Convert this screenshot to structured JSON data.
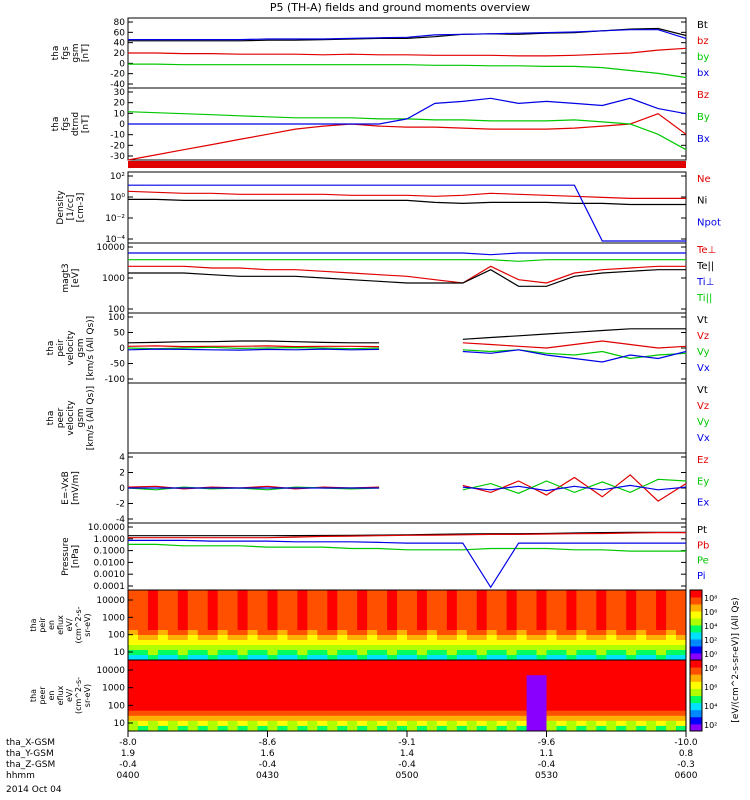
{
  "title": "P5 (TH-A) fields and ground moments overview",
  "colors": {
    "black": "#000000",
    "red": "#e00000",
    "green": "#00c800",
    "blue": "#0000e6"
  },
  "chart_data": {
    "type": "line",
    "x_axis": {
      "tick_hhmm": [
        "0400",
        "0430",
        "0500",
        "0530",
        "0600"
      ],
      "date_label": "2014 Oct 04",
      "row_labels": [
        "tha_X-GSM",
        "tha_Y-GSM",
        "tha_Z-GSM",
        "hhmm"
      ],
      "X_GSM": [
        "-8.0",
        "-8.6",
        "-9.1",
        "-9.6",
        "-10.0"
      ],
      "Y_GSM": [
        "1.9",
        "1.6",
        "1.4",
        "1.1",
        "0.8"
      ],
      "Z_GSM": [
        "-0.4",
        "-0.4",
        "-0.4",
        "-0.4",
        "-0.3"
      ]
    },
    "panels": [
      {
        "id": "fgs-mag",
        "ylabel": [
          "tha",
          "fgs",
          "gsm",
          "[nT]"
        ],
        "yticks": [
          "80",
          "60",
          "40",
          "20",
          "0",
          "-20",
          "-40"
        ],
        "ylim": [
          -40,
          80
        ],
        "series": [
          {
            "name": "Bt",
            "color": "black",
            "values": [
              41,
              41,
              41,
              41,
              41,
              42,
              42,
              43,
              44,
              45,
              45,
              48,
              52,
              53,
              52,
              54,
              55,
              58,
              61,
              62,
              50
            ]
          },
          {
            "name": "bz",
            "color": "red",
            "values": [
              20,
              20,
              19,
              19,
              18,
              18,
              18,
              17,
              18,
              17,
              17,
              16,
              16,
              16,
              15,
              15,
              16,
              18,
              20,
              25,
              28
            ]
          },
          {
            "name": "by",
            "color": "green",
            "values": [
              1,
              1,
              0,
              0,
              0,
              0,
              0,
              0,
              0,
              0,
              0,
              -1,
              -1,
              -2,
              -2,
              -3,
              -3,
              -5,
              -10,
              -15,
              -22
            ]
          },
          {
            "name": "bx",
            "color": "blue",
            "values": [
              43,
              43,
              43,
              43,
              43,
              44,
              44,
              44,
              45,
              46,
              47,
              51,
              52,
              53,
              54,
              55,
              56,
              58,
              60,
              60,
              45
            ]
          }
        ]
      },
      {
        "id": "fgs-detrend",
        "ylabel": [
          "tha",
          "fgs",
          "dtrnd",
          "[nT]"
        ],
        "yticks": [
          "30",
          "20",
          "10",
          "0",
          "-10",
          "-20",
          "-30"
        ],
        "ylim": [
          -35,
          35
        ],
        "series": [
          {
            "name": "Bz",
            "color": "red",
            "values": [
              -35,
              -30,
              -25,
              -20,
              -15,
              -10,
              -5,
              -2,
              0,
              -2,
              -3,
              -3,
              -4,
              -5,
              -5,
              -5,
              -4,
              -2,
              0,
              10,
              -10
            ]
          },
          {
            "name": "By",
            "color": "green",
            "values": [
              12,
              11,
              10,
              9,
              8,
              7,
              6,
              6,
              6,
              5,
              5,
              4,
              4,
              3,
              3,
              3,
              4,
              2,
              0,
              -10,
              -25
            ]
          },
          {
            "name": "Bx",
            "color": "blue",
            "values": [
              0,
              0,
              0,
              0,
              0,
              0,
              0,
              0,
              0,
              0,
              5,
              20,
              22,
              25,
              20,
              22,
              20,
              18,
              25,
              15,
              10
            ]
          }
        ]
      },
      {
        "id": "density",
        "ylabel": [
          "Density",
          "[1/cc]",
          "[cm-3]"
        ],
        "yticks": [
          "10²",
          "10⁰",
          "10⁻²",
          "10⁻⁴"
        ],
        "ylim": [
          -4.5,
          2.5
        ],
        "log": true,
        "series": [
          {
            "name": "Ne",
            "color": "red",
            "values": [
              0.6,
              0.5,
              0.4,
              0.4,
              0.3,
              0.3,
              0.3,
              0.3,
              0.2,
              0.2,
              0.2,
              0.1,
              0.2,
              0.4,
              0.3,
              0.2,
              0.1,
              0.0,
              -0.1,
              -0.1,
              -0.1
            ]
          },
          {
            "name": "Ni",
            "color": "black",
            "values": [
              -0.2,
              -0.2,
              -0.3,
              -0.3,
              -0.3,
              -0.3,
              -0.3,
              -0.3,
              -0.3,
              -0.3,
              -0.3,
              -0.5,
              -0.6,
              -0.5,
              -0.5,
              -0.5,
              -0.6,
              -0.6,
              -0.7,
              -0.7,
              -0.7
            ]
          },
          {
            "name": "Npot",
            "color": "blue",
            "values": [
              1.2,
              1.2,
              1.2,
              1.2,
              1.2,
              1.2,
              1.2,
              1.2,
              1.2,
              1.2,
              1.2,
              1.2,
              1.2,
              1.2,
              1.2,
              1.2,
              1.2,
              -4.3,
              -4.3,
              -4.3,
              -4.3
            ]
          }
        ]
      },
      {
        "id": "moments-temperature",
        "ylabel": [
          "magt3",
          "[eV]"
        ],
        "yticks": [
          "10000",
          "1000",
          "100"
        ],
        "ylim": [
          2.0,
          4.1
        ],
        "log": true,
        "series": [
          {
            "name": "Te⊥",
            "color": "red",
            "values": [
              3.4,
              3.4,
              3.4,
              3.35,
              3.35,
              3.3,
              3.3,
              3.25,
              3.2,
              3.15,
              3.1,
              3.0,
              2.9,
              3.4,
              3.0,
              2.9,
              3.2,
              3.3,
              3.35,
              3.4,
              3.4
            ]
          },
          {
            "name": "Te||",
            "color": "black",
            "values": [
              3.2,
              3.2,
              3.2,
              3.15,
              3.1,
              3.1,
              3.1,
              3.05,
              3.0,
              2.95,
              2.9,
              2.9,
              2.9,
              3.3,
              2.8,
              2.8,
              3.1,
              3.2,
              3.25,
              3.3,
              3.3
            ]
          },
          {
            "name": "Ti⊥",
            "color": "blue",
            "values": [
              3.8,
              3.8,
              3.8,
              3.8,
              3.8,
              3.8,
              3.8,
              3.8,
              3.8,
              3.8,
              3.8,
              3.8,
              3.8,
              3.75,
              3.8,
              3.8,
              3.8,
              3.8,
              3.8,
              3.8,
              3.8
            ]
          },
          {
            "name": "Ti||",
            "color": "green",
            "values": [
              3.6,
              3.6,
              3.6,
              3.6,
              3.6,
              3.6,
              3.6,
              3.6,
              3.6,
              3.6,
              3.6,
              3.6,
              3.6,
              3.6,
              3.55,
              3.6,
              3.6,
              3.6,
              3.6,
              3.6,
              3.6
            ]
          }
        ]
      },
      {
        "id": "ion-velocity",
        "ylabel": [
          "tha",
          "peir",
          "velocity",
          "gsm",
          "[km/s (All Qs)]"
        ],
        "yticks": [
          "100",
          "50",
          "0",
          "-50",
          "-100"
        ],
        "ylim": [
          -100,
          100
        ],
        "series": [
          {
            "name": "Vt",
            "color": "black",
            "values": [
              15,
              16,
              18,
              18,
              20,
              20,
              18,
              16,
              15,
              15,
              null,
              null,
              25,
              30,
              35,
              40,
              45,
              50,
              55,
              55,
              55
            ]
          },
          {
            "name": "Vz",
            "color": "red",
            "values": [
              5,
              6,
              4,
              5,
              5,
              6,
              4,
              5,
              5,
              4,
              null,
              null,
              15,
              10,
              5,
              0,
              10,
              20,
              10,
              0,
              5
            ]
          },
          {
            "name": "Vy",
            "color": "green",
            "values": [
              0,
              -2,
              0,
              2,
              -1,
              0,
              1,
              0,
              -2,
              0,
              null,
              null,
              -5,
              -10,
              -5,
              -15,
              -20,
              -10,
              -30,
              -20,
              -15
            ]
          },
          {
            "name": "Vx",
            "color": "blue",
            "values": [
              -5,
              -3,
              -4,
              -5,
              -6,
              -4,
              -5,
              -3,
              -5,
              -4,
              null,
              null,
              -10,
              -15,
              -5,
              -20,
              -30,
              -40,
              -20,
              -30,
              -10
            ]
          }
        ]
      },
      {
        "id": "electron-velocity",
        "ylabel": [
          "tha",
          "peer",
          "velocity",
          "gsm",
          "[km/s (All Qs)]"
        ],
        "yticks": [],
        "ylim": [
          -100,
          100
        ],
        "series": [
          {
            "name": "Vt",
            "color": "black",
            "values": []
          },
          {
            "name": "Vz",
            "color": "red",
            "values": []
          },
          {
            "name": "Vy",
            "color": "green",
            "values": []
          },
          {
            "name": "Vx",
            "color": "blue",
            "values": []
          }
        ]
      },
      {
        "id": "e-field",
        "ylabel": [
          "E=-VxB",
          "[mV/m]"
        ],
        "yticks": [
          "4",
          "2",
          "0",
          "-2",
          "-4"
        ],
        "ylim": [
          -4,
          4
        ],
        "series": [
          {
            "name": "Ez",
            "color": "red",
            "values": [
              0.1,
              0.2,
              -0.1,
              0.1,
              0.0,
              0.2,
              -0.1,
              0.1,
              0.0,
              0.1,
              null,
              null,
              0.3,
              -0.5,
              0.8,
              -0.8,
              1.2,
              -1.0,
              1.5,
              -1.5,
              0.5
            ]
          },
          {
            "name": "Ey",
            "color": "green",
            "values": [
              0.0,
              -0.2,
              0.1,
              -0.1,
              0.0,
              -0.2,
              0.1,
              0.0,
              -0.1,
              0.0,
              null,
              null,
              -0.2,
              0.5,
              -0.6,
              0.8,
              -0.5,
              0.7,
              -0.5,
              1.0,
              0.8
            ]
          },
          {
            "name": "Ex",
            "color": "blue",
            "values": [
              0.0,
              0.0,
              0.0,
              0.0,
              0.0,
              0.0,
              0.0,
              0.0,
              0.0,
              0.0,
              null,
              null,
              0.1,
              -0.2,
              0.2,
              -0.3,
              0.2,
              -0.2,
              0.3,
              -0.2,
              0.1
            ]
          }
        ]
      },
      {
        "id": "pressure",
        "ylabel": [
          "Pressure",
          "[nPa]"
        ],
        "yticks": [
          "10.0000",
          "1.0000",
          "0.1000",
          "0.0100",
          "0.0010",
          "0.0001"
        ],
        "ylim": [
          -4,
          1
        ],
        "log": true,
        "series": [
          {
            "name": "Pt",
            "color": "black",
            "values": [
              0.05,
              0.05,
              0.05,
              0.05,
              0.05,
              0.05,
              0.06,
              0.07,
              0.08,
              0.1,
              0.12,
              0.15,
              0.18,
              0.2,
              0.2,
              0.22,
              0.25,
              0.28,
              0.3,
              0.3,
              0.3
            ]
          },
          {
            "name": "Pb",
            "color": "red",
            "values": [
              -0.1,
              -0.1,
              -0.1,
              -0.1,
              -0.1,
              -0.1,
              -0.05,
              0.0,
              0.02,
              0.05,
              0.08,
              0.1,
              0.12,
              0.15,
              0.15,
              0.18,
              0.2,
              0.22,
              0.25,
              0.28,
              0.28
            ]
          },
          {
            "name": "Pe",
            "color": "green",
            "values": [
              -0.6,
              -0.6,
              -0.7,
              -0.7,
              -0.7,
              -0.8,
              -0.8,
              -0.8,
              -0.9,
              -0.9,
              -1.0,
              -1.0,
              -1.0,
              -0.9,
              -0.9,
              -0.9,
              -1.0,
              -1.0,
              -1.1,
              -1.1,
              -1.1
            ]
          },
          {
            "name": "Pi",
            "color": "blue",
            "values": [
              -0.3,
              -0.3,
              -0.3,
              -0.35,
              -0.35,
              -0.35,
              -0.4,
              -0.4,
              -0.4,
              -0.45,
              -0.5,
              -0.5,
              -0.5,
              -3.8,
              -0.5,
              -0.5,
              -0.5,
              -0.5,
              -0.5,
              -0.5,
              -0.5
            ]
          }
        ]
      }
    ],
    "spectrograms": [
      {
        "id": "ion-eflux",
        "type": "heatmap",
        "ylabel": [
          "tha",
          "peir",
          "en",
          "eflux",
          "eV/",
          "(cm^2-s-",
          "sr-eV)"
        ],
        "yticks": [
          "10000",
          "1000",
          "100",
          "10"
        ]
      },
      {
        "id": "electron-eflux",
        "type": "heatmap",
        "ylabel": [
          "tha",
          "peer",
          "en",
          "eflux",
          "eV/",
          "(cm^2-s-",
          "sr-eV)"
        ],
        "yticks": [
          "10000",
          "1000",
          "100",
          "10"
        ]
      }
    ],
    "colorbar": {
      "label": "[eV/(cm^2-s-sr-eV)] (All Qs)",
      "ion_ticks": [
        "10⁸",
        "10⁶",
        "10⁴",
        "10²",
        "10⁰"
      ],
      "electron_ticks": [
        "10⁸",
        "10⁶",
        "10⁴",
        "10²"
      ]
    }
  }
}
